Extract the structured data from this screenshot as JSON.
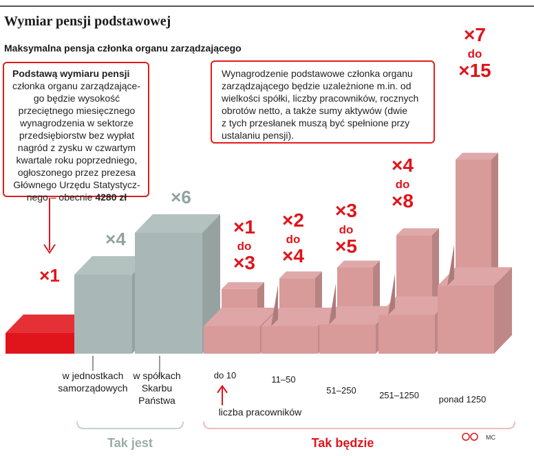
{
  "title": "Wymiar pensji podstawowej",
  "subtitle": "Maksymalna pensja członka organu zarządzającego",
  "info_left": {
    "lines": [
      "Podstawą wymiaru pensji",
      "członka organu zarządzające-",
      "go będzie wysokość",
      "przeciętnego miesięcznego",
      "wynagrodzenia w sektorze",
      "przedsiębiorstw bez wypłat",
      "nagród z zysku w czwartym",
      "kwartale roku poprzedniego,",
      "ogłoszonego przez prezesa",
      "Głównego Urzędu Statystycz-",
      "nego – obecnie"
    ],
    "amount": "4280 zł"
  },
  "info_right": {
    "lines": [
      "Wynagrodzenie podstawowe członka organu",
      "zarządzającego będzie uzależnione m.in. od",
      "wielkości spółki, liczby pracowników, rocznych",
      "obrotów netto, a także sumy aktywów (dwie",
      "z tych przesłanek muszą być spełnione przy",
      "ustalaniu pensji)."
    ]
  },
  "chart_data": {
    "type": "bar",
    "groups": [
      {
        "label": "Tak jest",
        "categories": [
          "w jednostkach samorządowych",
          "w spółkach Skarbu Państwa"
        ]
      },
      {
        "label": "Tak będzie",
        "categories": [
          "do 10",
          "11–50",
          "51–250",
          "251–1250",
          "ponad 1250"
        ]
      }
    ],
    "base": {
      "label": "×1",
      "value": 1
    },
    "current": [
      {
        "category": "w jednostkach samorządowych",
        "category_lines": [
          "w jednostkach",
          "samorządowych"
        ],
        "max": 4,
        "label": "×4"
      },
      {
        "category": "w spółkach Skarbu Państwa",
        "category_lines": [
          "w spółkach",
          "Skarbu",
          "Państwa"
        ],
        "max": 6,
        "label": "×6"
      }
    ],
    "planned": [
      {
        "category": "do 10",
        "min": 1,
        "max": 3,
        "label_min": "×1",
        "label_sep": "do",
        "label_max": "×3"
      },
      {
        "category": "11–50",
        "min": 2,
        "max": 4,
        "label_min": "×2",
        "label_sep": "do",
        "label_max": "×4"
      },
      {
        "category": "51–250",
        "min": 3,
        "max": 5,
        "label_min": "×3",
        "label_sep": "do",
        "label_max": "×5"
      },
      {
        "category": "251–1250",
        "min": 4,
        "max": 8,
        "label_min": "×4",
        "label_sep": "do",
        "label_max": "×8"
      },
      {
        "category": "ponad 1250",
        "min": 7,
        "max": 15,
        "label_min": "×7",
        "label_sep": "do",
        "label_max": "×15"
      }
    ],
    "axis_note": "liczba pracowników",
    "group_label_current": "Tak jest",
    "group_label_planned": "Tak będzie",
    "colors": {
      "base": "#e0141b",
      "current": "#a9b8b6",
      "planned": "#d99a9a",
      "label_red": "#e0141b",
      "label_grey": "#8fa3a1"
    }
  },
  "credit": "MC"
}
